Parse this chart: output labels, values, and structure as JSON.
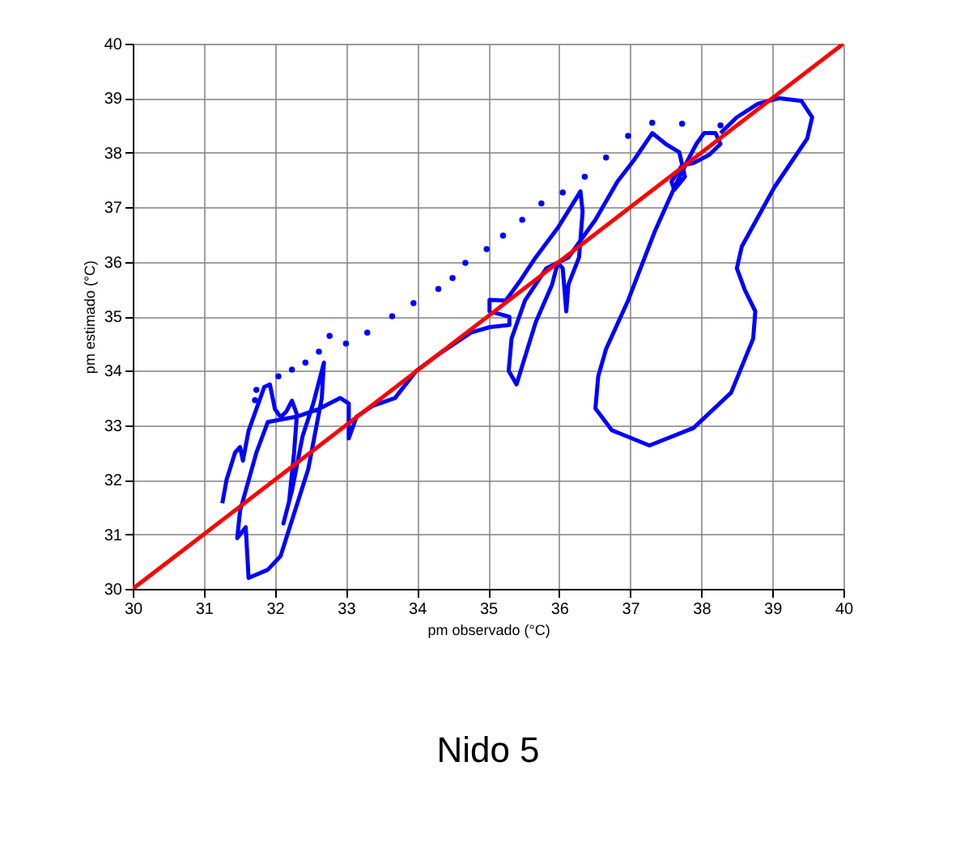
{
  "chart_data": {
    "type": "line",
    "title": "Nido 5",
    "xlabel": "pm observado (°C)",
    "ylabel": "pm estimado (°C)",
    "xlim": [
      30,
      40
    ],
    "ylim": [
      30,
      40
    ],
    "xticks": [
      30,
      31,
      32,
      33,
      34,
      35,
      36,
      37,
      38,
      39,
      40
    ],
    "yticks": [
      30,
      31,
      32,
      33,
      34,
      35,
      36,
      37,
      38,
      39,
      40
    ],
    "grid": true,
    "marker": "none",
    "series": [
      {
        "color": "#0000ff",
        "x": [
          31.26,
          31.32,
          31.44,
          31.51,
          31.55,
          31.63,
          31.74,
          31.85,
          31.93,
          32.0,
          32.08,
          32.16,
          32.24,
          32.31,
          32.27,
          32.2,
          32.12,
          32.24,
          32.39,
          32.54,
          32.69,
          32.66,
          32.47,
          32.08,
          31.9,
          31.63,
          31.59,
          31.47,
          31.51,
          31.74,
          31.9,
          32.31,
          32.62,
          32.92,
          33.04,
          33.04,
          33.15,
          33.38,
          33.69,
          33.99,
          34.3,
          34.76,
          35.02,
          35.3,
          35.3,
          35.02,
          35.02,
          35.25,
          35.44,
          35.67,
          35.98,
          36.3,
          36.33,
          36.28,
          36.13,
          36.1,
          36.05,
          35.98,
          35.9,
          35.67,
          35.4,
          35.29,
          35.33,
          35.52,
          35.82,
          36.13,
          36.51,
          36.82,
          37.05,
          37.31,
          37.5,
          37.69,
          37.77,
          37.62,
          37.58,
          37.73,
          37.89,
          38.11,
          38.27,
          38.2,
          38.04,
          37.93,
          37.81,
          37.66,
          37.35,
          36.97,
          36.66,
          36.55,
          36.51,
          36.74,
          37.27,
          37.89,
          38.42,
          38.73,
          38.76,
          38.61,
          38.5,
          38.57,
          39.03,
          39.49,
          39.56,
          39.41,
          39.1,
          38.8,
          38.5,
          38.27
        ],
        "values": [
          31.57,
          32.0,
          32.5,
          32.6,
          32.35,
          32.9,
          33.3,
          33.7,
          33.75,
          33.3,
          33.15,
          33.25,
          33.45,
          33.2,
          32.5,
          31.6,
          31.2,
          31.8,
          32.8,
          33.4,
          34.15,
          33.5,
          32.2,
          30.6,
          30.35,
          30.2,
          31.13,
          30.93,
          31.43,
          32.5,
          33.06,
          33.16,
          33.3,
          33.5,
          33.4,
          32.76,
          33.16,
          33.36,
          33.5,
          34.0,
          34.3,
          34.7,
          34.8,
          34.84,
          34.99,
          35.09,
          35.3,
          35.29,
          35.63,
          36.08,
          36.62,
          37.29,
          36.92,
          36.08,
          35.58,
          35.09,
          35.88,
          35.98,
          35.58,
          34.89,
          33.75,
          34.0,
          34.59,
          35.29,
          35.88,
          36.08,
          36.77,
          37.47,
          37.86,
          38.36,
          38.16,
          38.01,
          37.56,
          37.32,
          37.47,
          37.77,
          37.81,
          37.96,
          38.16,
          38.36,
          38.36,
          38.16,
          37.86,
          37.47,
          36.57,
          35.29,
          34.4,
          33.9,
          33.31,
          32.91,
          32.63,
          32.95,
          33.6,
          34.59,
          35.09,
          35.49,
          35.88,
          36.28,
          37.37,
          38.26,
          38.65,
          38.95,
          39.0,
          38.9,
          38.65,
          38.36
        ]
      },
      {
        "type": "scatter",
        "marker": "circle",
        "color": "#0000ff",
        "x": [
          31.72,
          31.74,
          32.05,
          32.24,
          32.43,
          32.62,
          32.77,
          33.0,
          33.3,
          33.65,
          33.95,
          34.3,
          34.5,
          34.68,
          34.98,
          35.21,
          35.48,
          35.75,
          36.05,
          36.36,
          36.66,
          36.97,
          37.31,
          37.73,
          38.27
        ],
        "values": [
          33.46,
          33.65,
          33.9,
          34.02,
          34.15,
          34.35,
          34.64,
          34.5,
          34.7,
          35.0,
          35.24,
          35.5,
          35.7,
          35.98,
          36.23,
          36.48,
          36.77,
          37.07,
          37.27,
          37.56,
          37.91,
          38.31,
          38.55,
          38.53,
          38.5
        ]
      },
      {
        "color": "#ff0000",
        "x": [
          30,
          40
        ],
        "values": [
          30,
          40
        ]
      }
    ]
  }
}
